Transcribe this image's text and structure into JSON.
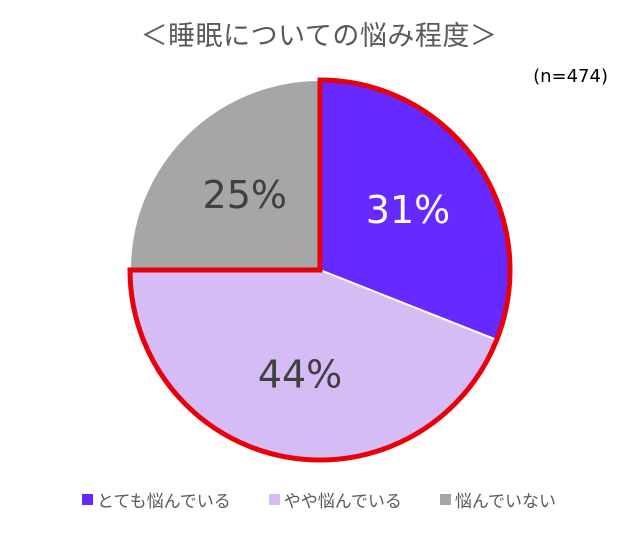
{
  "chart_data": {
    "type": "pie",
    "title": "＜睡眠についての悩み程度＞",
    "annotation": "(n=474)",
    "categories": [
      "とても悩んでいる",
      "やや悩んでいる",
      "悩んでいない"
    ],
    "values": [
      31,
      44,
      25
    ],
    "value_labels": [
      "31%",
      "44%",
      "25%"
    ],
    "colors": [
      "#6629FF",
      "#D6BCF5",
      "#A6A6A6"
    ],
    "label_colors": [
      "#FFFFFF",
      "#404040",
      "#404040"
    ],
    "highlight_color": "#E8000B",
    "highlighted_categories": [
      "とても悩んでいる",
      "やや悩んでいる"
    ],
    "legend_position": "bottom"
  }
}
